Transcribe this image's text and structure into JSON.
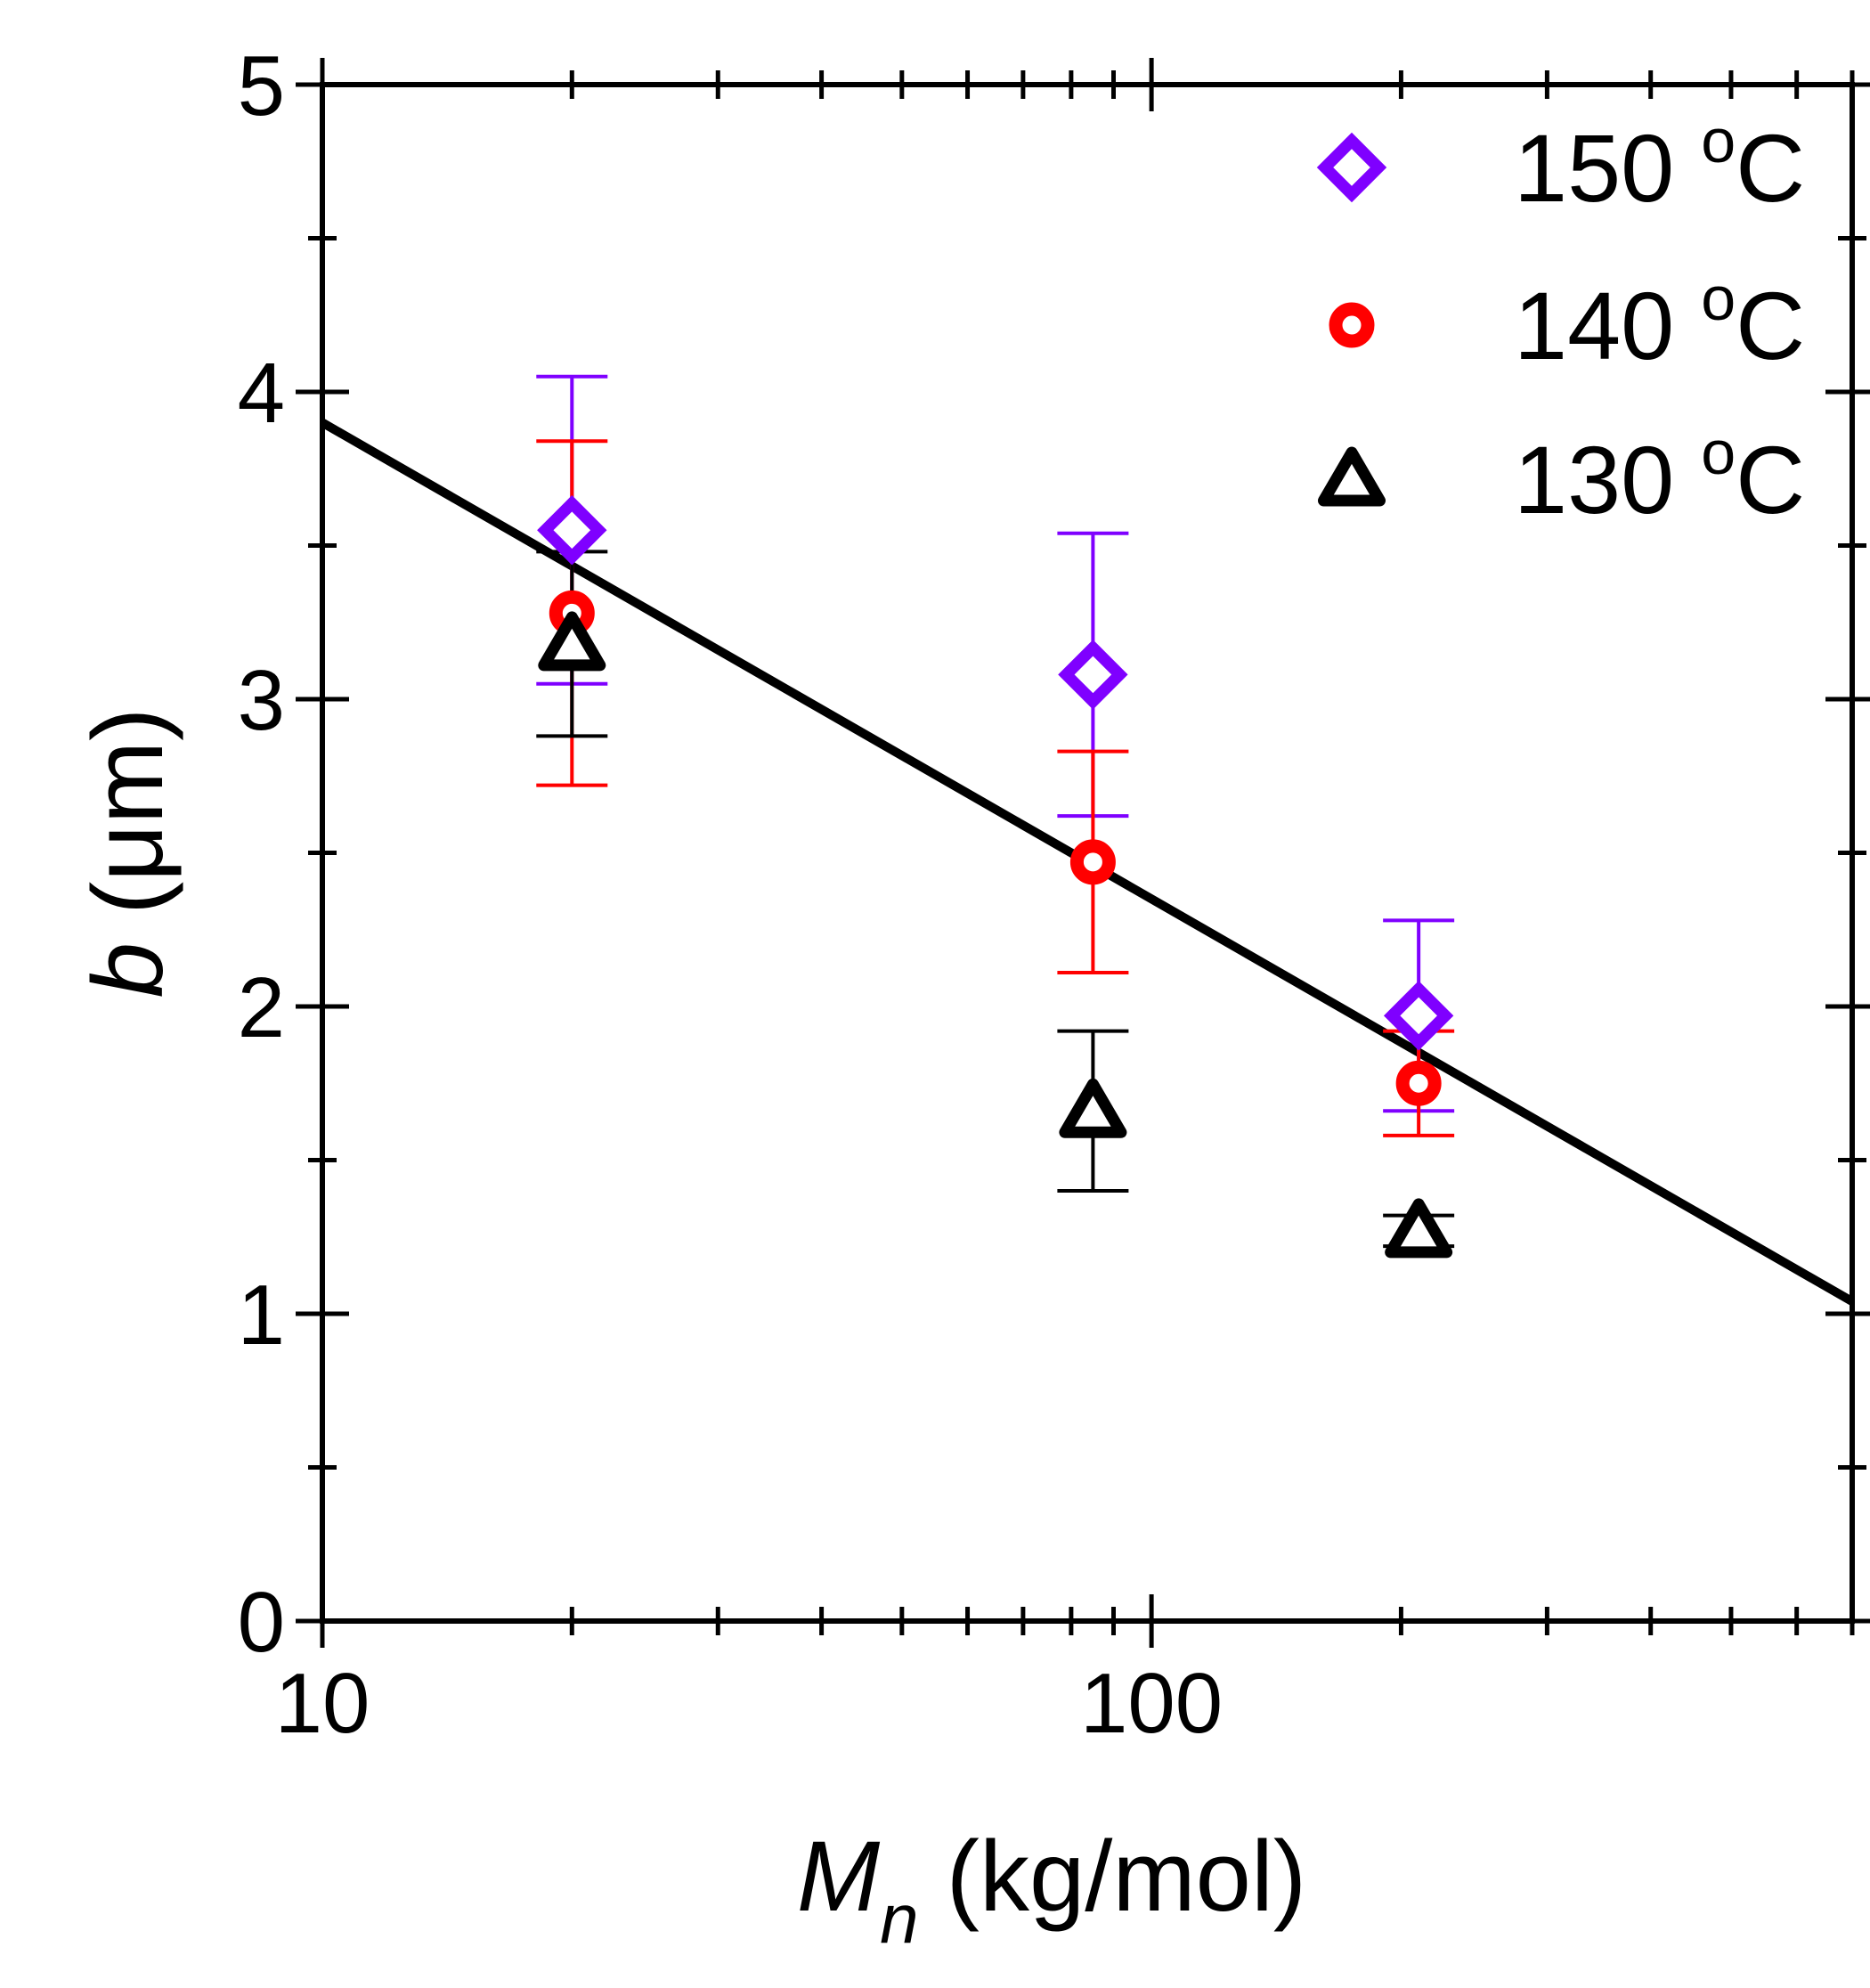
{
  "chart_data": {
    "type": "scatter",
    "title": "",
    "xlabel": {
      "var": "M",
      "sub": "n",
      "unit": " (kg/mol)"
    },
    "ylabel": {
      "var": "b",
      "unit": " (μm)"
    },
    "xscale": "log",
    "xlim": [
      10,
      700
    ],
    "ylim": [
      0,
      5
    ],
    "xticks": [
      10,
      100
    ],
    "xtick_labels": [
      "10",
      "100"
    ],
    "yticks": [
      0,
      1,
      2,
      3,
      4,
      5
    ],
    "ytick_labels": [
      "0",
      "1",
      "2",
      "3",
      "4",
      "5"
    ],
    "legend_position": "top-right",
    "series": [
      {
        "name": "150 °C",
        "label_num": "150 ",
        "label_deg": "o",
        "label_unit": "C",
        "marker": "diamond",
        "color": "#7f00ff",
        "points": [
          {
            "x": 20,
            "y": 3.55,
            "err": 0.5
          },
          {
            "x": 85,
            "y": 3.08,
            "err": 0.46
          },
          {
            "x": 210,
            "y": 1.97,
            "err": 0.31
          }
        ]
      },
      {
        "name": "140 °C",
        "label_num": "140 ",
        "label_deg": "o",
        "label_unit": "C",
        "marker": "circle",
        "color": "#ff0000",
        "points": [
          {
            "x": 20,
            "y": 3.28,
            "err": 0.56
          },
          {
            "x": 85,
            "y": 2.47,
            "err": 0.36
          },
          {
            "x": 210,
            "y": 1.75,
            "err": 0.17
          }
        ]
      },
      {
        "name": "130 °C",
        "label_num": "130 ",
        "label_deg": "o",
        "label_unit": "C",
        "marker": "triangle",
        "color": "#000000",
        "points": [
          {
            "x": 20,
            "y": 3.18,
            "err": 0.3
          },
          {
            "x": 85,
            "y": 1.66,
            "err": 0.26
          },
          {
            "x": 210,
            "y": 1.27,
            "err": 0.05
          }
        ]
      }
    ],
    "fit_line": {
      "x": [
        10,
        700
      ],
      "y": [
        3.9,
        1.04
      ],
      "color": "#000000"
    }
  }
}
